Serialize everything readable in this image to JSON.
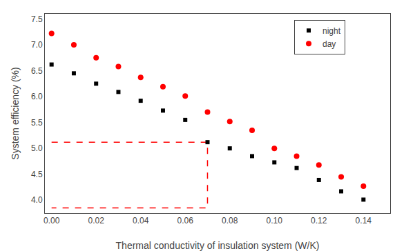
{
  "chart_data": {
    "type": "scatter",
    "xlabel": "Thermal conductivity of insulation system (W/K)",
    "ylabel": "System efficiency (%)",
    "series": [
      {
        "name": "night",
        "type": "scatter",
        "marker": "square",
        "color": "#000000",
        "x": [
          0.0,
          0.01,
          0.02,
          0.03,
          0.04,
          0.05,
          0.06,
          0.07,
          0.08,
          0.09,
          0.1,
          0.11,
          0.12,
          0.13,
          0.14
        ],
        "values": [
          6.62,
          6.45,
          6.25,
          6.09,
          5.92,
          5.73,
          5.55,
          5.12,
          5.0,
          4.85,
          4.73,
          4.62,
          4.39,
          4.17,
          4.01
        ]
      },
      {
        "name": "day",
        "type": "scatter",
        "marker": "circle",
        "color": "#ff0000",
        "x": [
          0.0,
          0.01,
          0.02,
          0.03,
          0.04,
          0.05,
          0.06,
          0.07,
          0.08,
          0.09,
          0.1,
          0.11,
          0.12,
          0.13,
          0.14
        ],
        "values": [
          7.22,
          7.0,
          6.75,
          6.58,
          6.37,
          6.19,
          6.01,
          5.7,
          5.52,
          5.35,
          5.0,
          4.85,
          4.68,
          4.45,
          4.27
        ]
      },
      {
        "type": "line",
        "line_style": "dashed",
        "color": "#ff0000",
        "x": [
          0.0,
          0.07,
          0.07,
          0.0
        ],
        "values": [
          5.12,
          5.12,
          3.85,
          3.85
        ]
      }
    ],
    "xlim": [
      -0.003,
      0.152
    ],
    "ylim": [
      3.75,
      7.6
    ],
    "xticks": [
      {
        "value": 0,
        "label": "0.00"
      },
      0.02,
      0.04,
      0.06,
      0.08,
      {
        "value": 0.1,
        "label": "0.10"
      },
      0.12,
      0.14
    ],
    "yticks": [
      {
        "value": 4,
        "label": "4.0"
      },
      4.5,
      {
        "value": 5,
        "label": "5.0"
      },
      5.5,
      {
        "value": 6,
        "label": "6.0"
      },
      6.5,
      {
        "value": 7,
        "label": "7.0"
      },
      7.5
    ],
    "grid": false,
    "legend": "upper right"
  }
}
